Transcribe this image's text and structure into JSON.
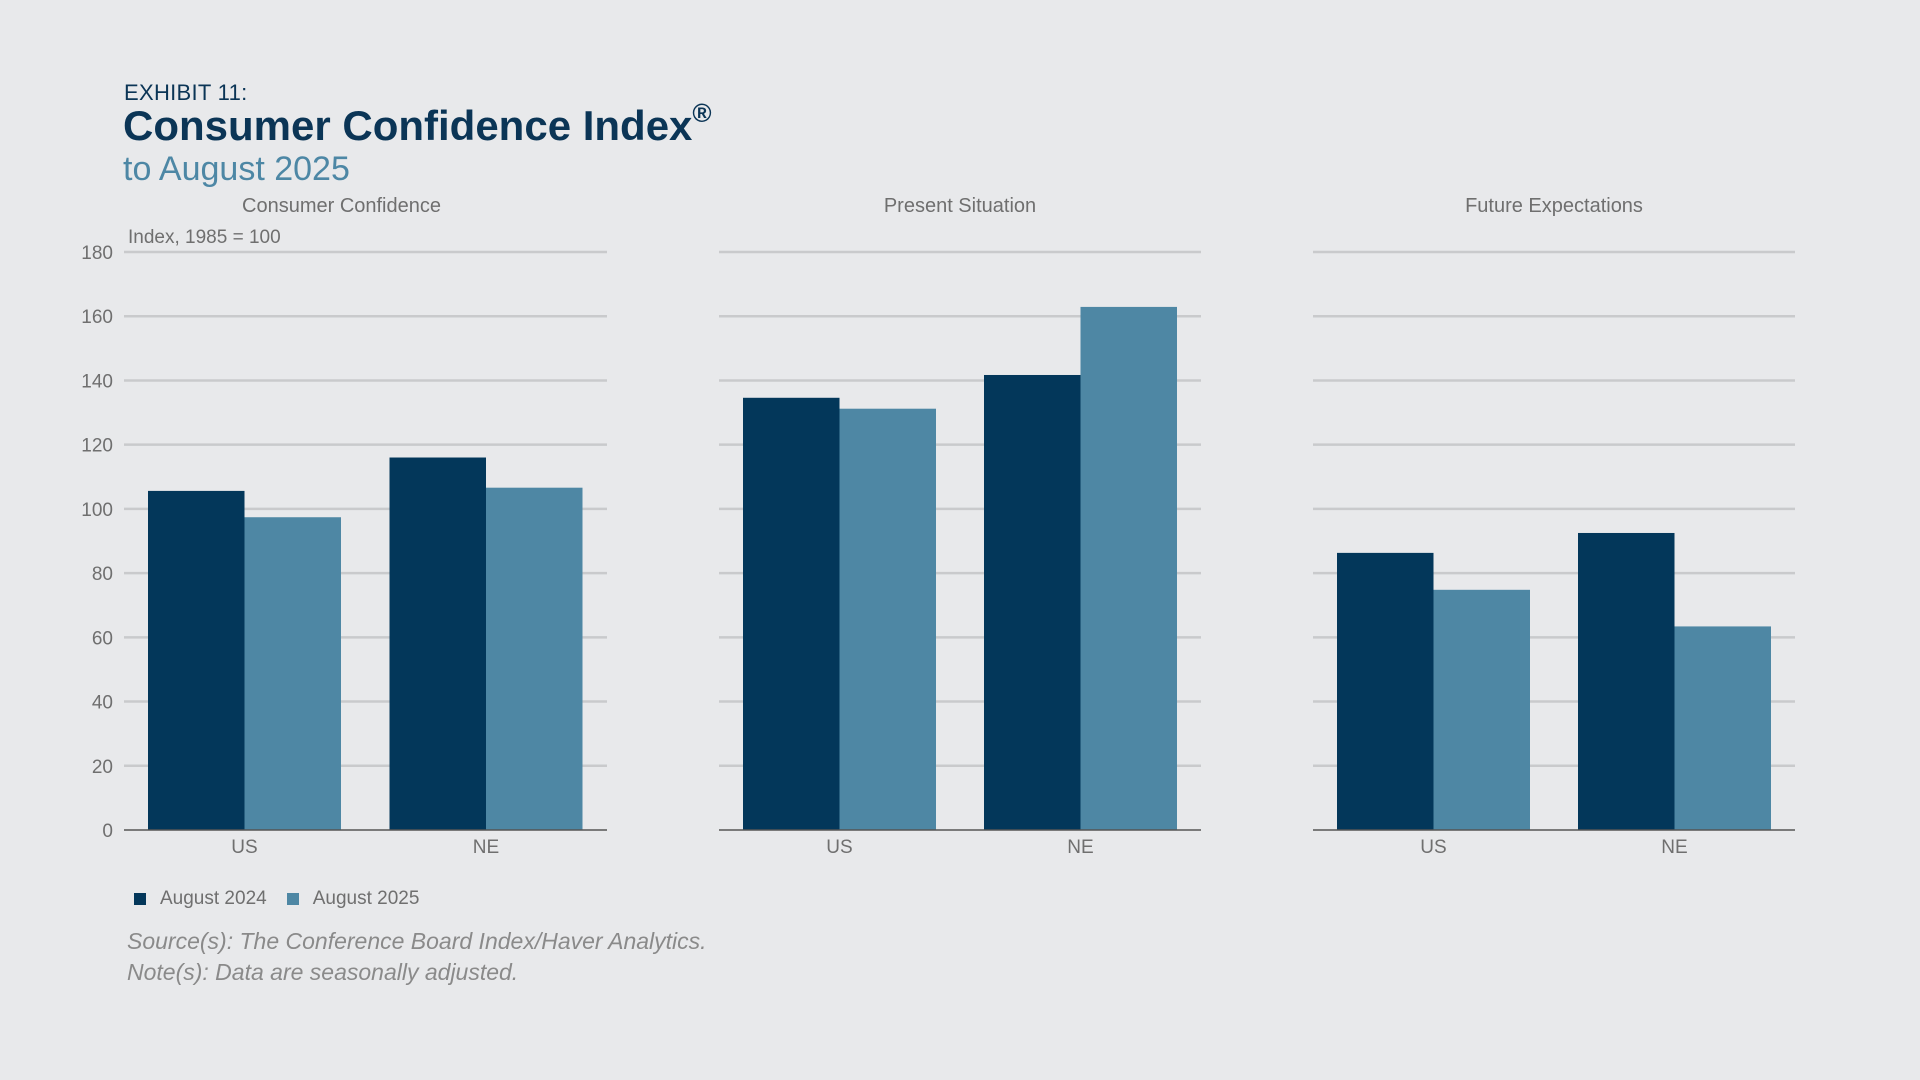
{
  "header": {
    "exhibit": "EXHIBIT 11:",
    "title": "Consumer Confidence Index",
    "title_mark": "®",
    "subtitle": "to August 2025"
  },
  "colors": {
    "series_2024": "#03375a",
    "series_2025": "#4e87a4",
    "grid": "#c9cacc",
    "axis": "#555555",
    "text": "#6f6f6f"
  },
  "chart_data": [
    {
      "type": "bar",
      "title": "Consumer Confidence",
      "ylabel": "Index, 1985 = 100",
      "categories": [
        "US",
        "NE"
      ],
      "series": [
        {
          "name": "August 2024",
          "values": [
            105.6,
            116
          ]
        },
        {
          "name": "August 2025",
          "values": [
            97.4,
            106.6
          ]
        }
      ],
      "ylim": [
        0,
        180
      ],
      "yticks": [
        0,
        20,
        40,
        60,
        80,
        100,
        120,
        140,
        160,
        180
      ],
      "grid": true
    },
    {
      "type": "bar",
      "title": "Present Situation",
      "categories": [
        "US",
        "NE"
      ],
      "series": [
        {
          "name": "August 2024",
          "values": [
            134.6,
            141.7
          ]
        },
        {
          "name": "August 2025",
          "values": [
            131.2,
            162.9
          ]
        }
      ],
      "ylim": [
        0,
        180
      ],
      "grid": true
    },
    {
      "type": "bar",
      "title": "Future Expectations",
      "categories": [
        "US",
        "NE"
      ],
      "series": [
        {
          "name": "August 2024",
          "values": [
            86.3,
            92.5
          ]
        },
        {
          "name": "August 2025",
          "values": [
            74.8,
            63.4
          ]
        }
      ],
      "ylim": [
        0,
        180
      ],
      "grid": true
    }
  ],
  "legend": {
    "position": "bottom-left",
    "items": [
      {
        "label": "August 2024",
        "color": "#03375a"
      },
      {
        "label": "August 2025",
        "color": "#4e87a4"
      }
    ]
  },
  "footer": {
    "source": "Source(s): The Conference Board Index/Haver Analytics.",
    "note": "Note(s): Data are seasonally adjusted."
  }
}
